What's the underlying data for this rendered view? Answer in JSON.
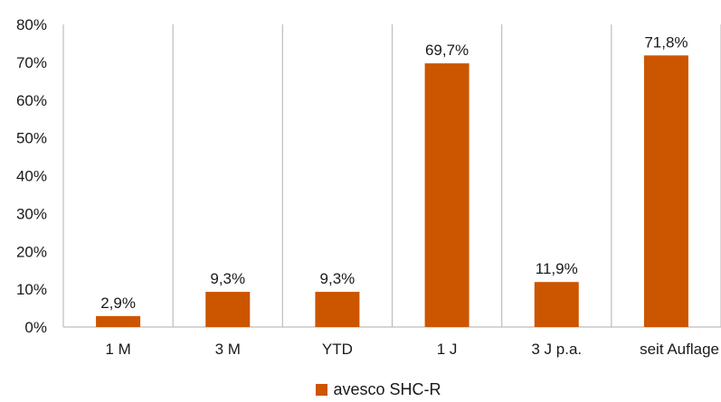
{
  "chart_data": {
    "type": "bar",
    "categories": [
      "1 M",
      "3 M",
      "YTD",
      "1 J",
      "3 J p.a.",
      "seit Auflage"
    ],
    "series": [
      {
        "name": "avesco SHC-R",
        "values": [
          2.9,
          9.3,
          9.3,
          69.7,
          11.9,
          71.8
        ],
        "labels": [
          "2,9%",
          "9,3%",
          "9,3%",
          "69,7%",
          "11,9%",
          "71,8%"
        ],
        "color": "#cc5500"
      }
    ],
    "yticks": [
      "0%",
      "10%",
      "20%",
      "30%",
      "40%",
      "50%",
      "60%",
      "70%",
      "80%"
    ],
    "ylim": [
      0,
      80
    ],
    "grid": "vertical separators between categories",
    "legend": "bottom-center",
    "title": "",
    "xlabel": "",
    "ylabel": ""
  }
}
